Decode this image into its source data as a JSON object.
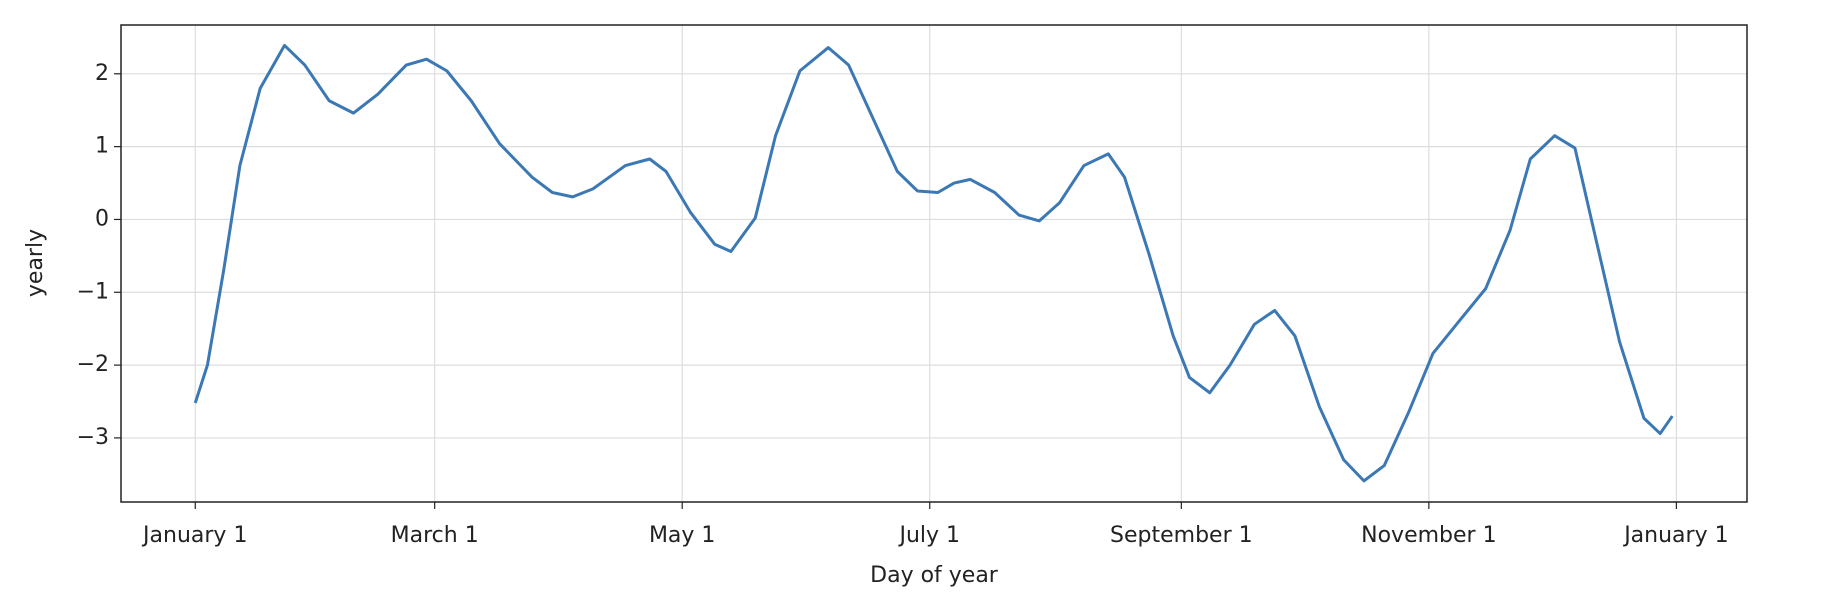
{
  "chart_data": {
    "type": "line",
    "xlabel": "Day of year",
    "ylabel": "yearly",
    "x": [
      0,
      3,
      7,
      11,
      16,
      22,
      27,
      33,
      39,
      45,
      52,
      57,
      62,
      68,
      75,
      83,
      88,
      93,
      98,
      106,
      112,
      116,
      122,
      128,
      132,
      138,
      143,
      149,
      156,
      161,
      167,
      173,
      178,
      183,
      187,
      191,
      197,
      203,
      208,
      213,
      219,
      225,
      229,
      235,
      241,
      245,
      250,
      255,
      261,
      266,
      271,
      277,
      283,
      288,
      293,
      299,
      305,
      312,
      318,
      324,
      329,
      335,
      340,
      345,
      351,
      357,
      361,
      364
    ],
    "values": [
      -2.52,
      -2.0,
      -0.7,
      0.74,
      1.8,
      2.39,
      2.12,
      1.63,
      1.46,
      1.72,
      2.12,
      2.2,
      2.04,
      1.63,
      1.04,
      0.58,
      0.37,
      0.31,
      0.42,
      0.74,
      0.83,
      0.66,
      0.1,
      -0.34,
      -0.44,
      0.02,
      1.15,
      2.04,
      2.36,
      2.12,
      1.39,
      0.66,
      0.39,
      0.37,
      0.5,
      0.55,
      0.37,
      0.06,
      -0.02,
      0.23,
      0.74,
      0.9,
      0.58,
      -0.47,
      -1.6,
      -2.17,
      -2.38,
      -2.0,
      -1.44,
      -1.25,
      -1.6,
      -2.57,
      -3.3,
      -3.59,
      -3.38,
      -2.65,
      -1.84,
      -1.36,
      -0.95,
      -0.15,
      0.83,
      1.15,
      0.98,
      -0.23,
      -1.68,
      -2.73,
      -2.94,
      -2.7
    ],
    "color": "#3b78b4",
    "xlim": [
      -18.3,
      382.4
    ],
    "xticks": [
      {
        "value": 0,
        "label": "January 1"
      },
      {
        "value": 59,
        "label": "March 1"
      },
      {
        "value": 120,
        "label": "May 1"
      },
      {
        "value": 181,
        "label": "July 1"
      },
      {
        "value": 243,
        "label": "September 1"
      },
      {
        "value": 304,
        "label": "November 1"
      },
      {
        "value": 365,
        "label": "January 1"
      }
    ],
    "ylim": [
      -3.88,
      2.67
    ],
    "yticks": [
      {
        "value": -3,
        "label": "−3"
      },
      {
        "value": -2,
        "label": "−2"
      },
      {
        "value": -1,
        "label": "−1"
      },
      0,
      1,
      2
    ],
    "grid": true
  }
}
